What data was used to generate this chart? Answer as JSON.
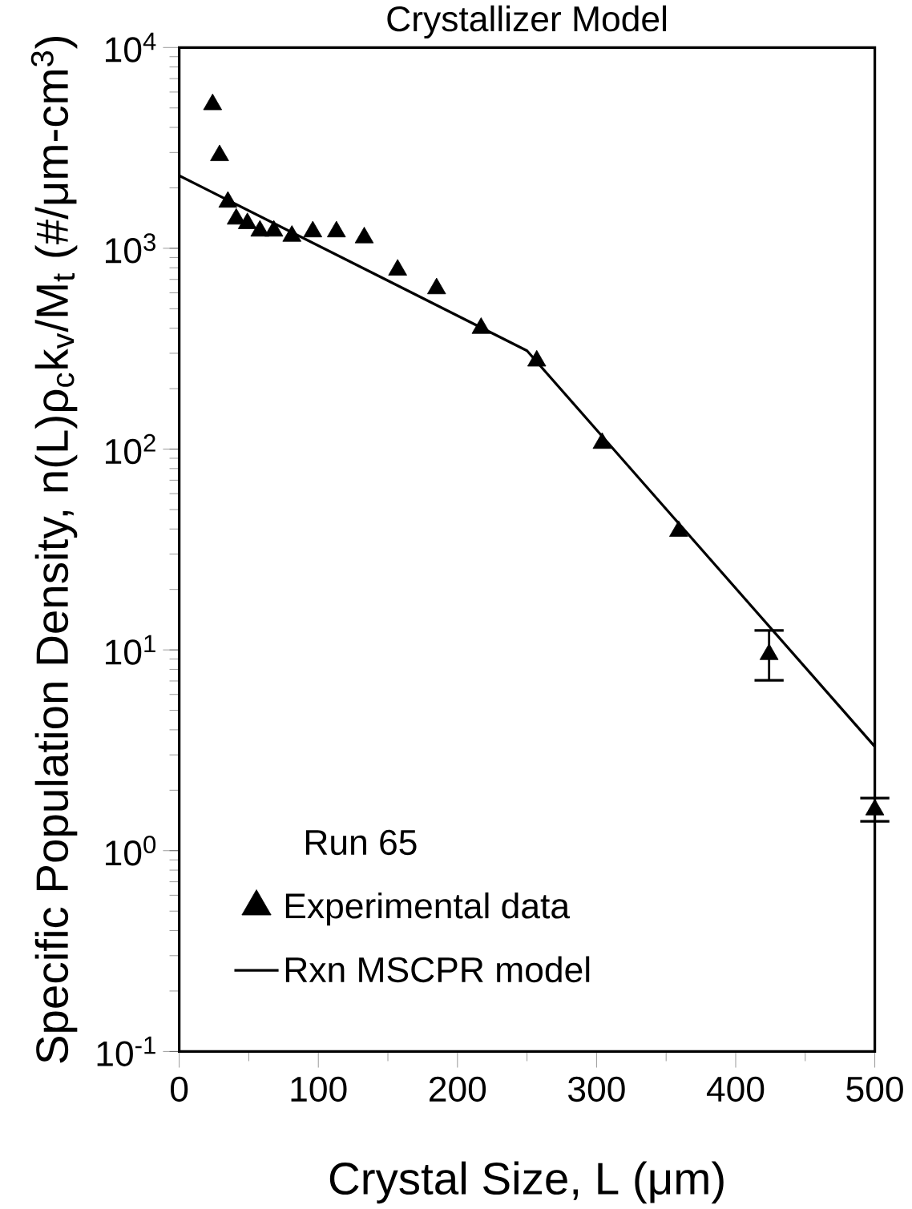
{
  "chart_data": {
    "type": "scatter",
    "title": "Crystallizer Model",
    "xlabel": "Crystal Size, L (μm)",
    "ylabel": "Specific Population Density, n(L)ρ$_{c}$k$_{v}$/M$_{t}$ (#/μm-cm$^{3}$)",
    "log": "y",
    "xlim": [
      0,
      500
    ],
    "ylim": [
      0.1,
      10000
    ],
    "xticks": [
      0,
      {
        "value": 50,
        "label": null
      },
      100,
      {
        "value": 150,
        "label": null
      },
      200,
      {
        "value": 250,
        "label": null
      },
      300,
      {
        "value": 350,
        "label": null
      },
      400,
      {
        "value": 450,
        "label": null
      },
      500
    ],
    "yticks": [
      {
        "value": 0.1,
        "label": "10$^{-1}$"
      },
      {
        "value": 1,
        "label": "10$^{0}$"
      },
      {
        "value": 10,
        "label": "10$^{1}$"
      },
      {
        "value": 100,
        "label": "10$^{2}$"
      },
      {
        "value": 1000,
        "label": "10$^{3}$"
      },
      {
        "value": 10000,
        "label": "10$^{4}$"
      }
    ],
    "legend": "bottom left",
    "annotations": [
      "Run 65"
    ],
    "series": [
      {
        "name": "Experimental data",
        "type": "scatter",
        "color": "#000000",
        "marker": "triangle",
        "x": [
          24,
          29,
          35,
          41,
          49,
          58,
          68,
          81,
          96,
          113,
          133,
          157,
          185,
          217,
          257,
          304,
          359,
          424,
          500
        ],
        "values": [
          5200,
          2900,
          1700,
          1400,
          1330,
          1220,
          1220,
          1150,
          1210,
          1210,
          1130,
          780,
          630,
          400,
          275,
          107,
          39,
          9.5,
          1.6
        ],
        "errors": [
          null,
          null,
          null,
          null,
          null,
          null,
          null,
          null,
          null,
          null,
          null,
          null,
          null,
          null,
          null,
          null,
          null,
          [
            7.05,
            12.5
          ],
          [
            1.4,
            1.83
          ]
        ]
      },
      {
        "name": "Rxn MSCPR model",
        "type": "line",
        "color": "#000000",
        "marker": "none",
        "line_style": "solid",
        "x": [
          0,
          250,
          500
        ],
        "values": [
          2300,
          309,
          3.3
        ]
      }
    ]
  }
}
